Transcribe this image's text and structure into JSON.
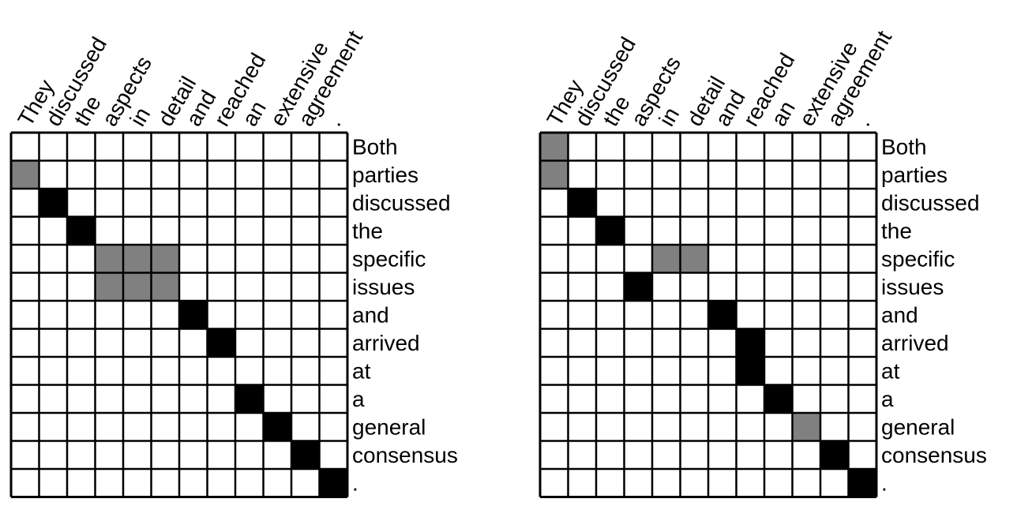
{
  "source_words": [
    "They",
    "discussed",
    "the",
    "aspects",
    "in",
    "detail",
    "and",
    "reached",
    "an",
    "extensive",
    "agreement",
    "."
  ],
  "target_words": [
    "Both",
    "parties",
    "discussed",
    "the",
    "specific",
    "issues",
    "and",
    "arrived",
    "at",
    "a",
    "general",
    "consensus",
    "."
  ],
  "colors": {
    "sure": "#000000",
    "possible": "#808080",
    "empty": "#ffffff",
    "grid": "#000000"
  },
  "matrices": [
    {
      "cells": [
        [
          0,
          1,
          "possible"
        ],
        [
          1,
          2,
          "sure"
        ],
        [
          2,
          3,
          "sure"
        ],
        [
          3,
          4,
          "possible"
        ],
        [
          3,
          5,
          "possible"
        ],
        [
          4,
          4,
          "possible"
        ],
        [
          4,
          5,
          "possible"
        ],
        [
          5,
          4,
          "possible"
        ],
        [
          5,
          5,
          "possible"
        ],
        [
          6,
          6,
          "sure"
        ],
        [
          7,
          7,
          "sure"
        ],
        [
          8,
          9,
          "sure"
        ],
        [
          9,
          10,
          "sure"
        ],
        [
          10,
          11,
          "sure"
        ],
        [
          11,
          12,
          "sure"
        ]
      ]
    },
    {
      "cells": [
        [
          0,
          0,
          "possible"
        ],
        [
          0,
          1,
          "possible"
        ],
        [
          1,
          2,
          "sure"
        ],
        [
          2,
          3,
          "sure"
        ],
        [
          4,
          4,
          "possible"
        ],
        [
          5,
          4,
          "possible"
        ],
        [
          3,
          5,
          "sure"
        ],
        [
          6,
          6,
          "sure"
        ],
        [
          7,
          7,
          "sure"
        ],
        [
          7,
          8,
          "sure"
        ],
        [
          8,
          9,
          "sure"
        ],
        [
          9,
          10,
          "possible"
        ],
        [
          10,
          11,
          "sure"
        ],
        [
          11,
          12,
          "sure"
        ]
      ]
    }
  ]
}
